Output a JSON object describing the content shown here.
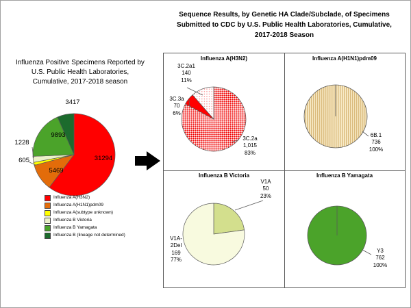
{
  "sequence_panel": {
    "title": "Sequence Results, by Genetic HA Clade/Subclade, of Specimens\nSubmitted to CDC by U.S. Public Health Laboratories, Cumulative,\n2017-2018 Season"
  },
  "chart_data": [
    {
      "id": "overall-positive-specimens",
      "type": "pie",
      "title": "Influenza Positive Specimens Reported by\nU.S. Public Health Laboratories,\nCumulative, 2017-2018 season",
      "legend_position": "bottom-left",
      "slices": [
        {
          "label": "Influenza A(H3N2)",
          "value": 31294,
          "color": "#FF0000",
          "display": "31294"
        },
        {
          "label": "Influenza A(H1N1)pdm09",
          "value": 5469,
          "color": "#E36C0A",
          "display": "5469"
        },
        {
          "label": "Influenza A(subtype unknown)",
          "value": 605,
          "color": "#FFFF00",
          "display": "605"
        },
        {
          "label": "Influenza B Victoria",
          "value": 1228,
          "color": "#EBF1C9",
          "display": "1228"
        },
        {
          "label": "Influenza B Yamagata",
          "value": 9893,
          "color": "#4BA32A",
          "display": "9893"
        },
        {
          "label": "Influenza B (lineage not determined)",
          "value": 3417,
          "color": "#1C6B2D",
          "display": "3417"
        }
      ]
    },
    {
      "id": "h3n2-clades",
      "type": "pie",
      "title": "Influenza A(H3N2)",
      "slices": [
        {
          "label": "3C.2a",
          "value": 1015,
          "pct": 83,
          "fill": "pattern:patRedDots",
          "display": "3C.2a\n1,015\n83%"
        },
        {
          "label": "3C.3a",
          "value": 70,
          "pct": 6,
          "fill": "#FF0000",
          "display": "3C.3a\n70\n6%"
        },
        {
          "label": "3C.2a1",
          "value": 140,
          "pct": 11,
          "fill": "pattern:patRedLight",
          "display": "3C.2a1\n140\n11%"
        }
      ]
    },
    {
      "id": "h1n1pdm09-clades",
      "type": "pie",
      "title": "Influenza A(H1N1)pdm09",
      "slices": [
        {
          "label": "6B.1",
          "value": 736,
          "pct": 100,
          "fill": "pattern:patTanStripes",
          "display": "6B.1\n736\n100%"
        }
      ]
    },
    {
      "id": "b-victoria-clades",
      "type": "pie",
      "title": "Influenza B Victoria",
      "slices": [
        {
          "label": "V1A",
          "value": 50,
          "pct": 23,
          "fill": "#D3DF8D",
          "display": "V1A\n50\n23%"
        },
        {
          "label": "V1A-2Del",
          "value": 169,
          "pct": 77,
          "fill": "#F8FADF",
          "display": "V1A-\n2Del\n169\n77%"
        }
      ]
    },
    {
      "id": "b-yamagata-clades",
      "type": "pie",
      "title": "Influenza B Yamagata",
      "slices": [
        {
          "label": "Y3",
          "value": 762,
          "pct": 100,
          "fill": "#4BA32A",
          "display": "Y3\n762\n100%"
        }
      ]
    }
  ]
}
